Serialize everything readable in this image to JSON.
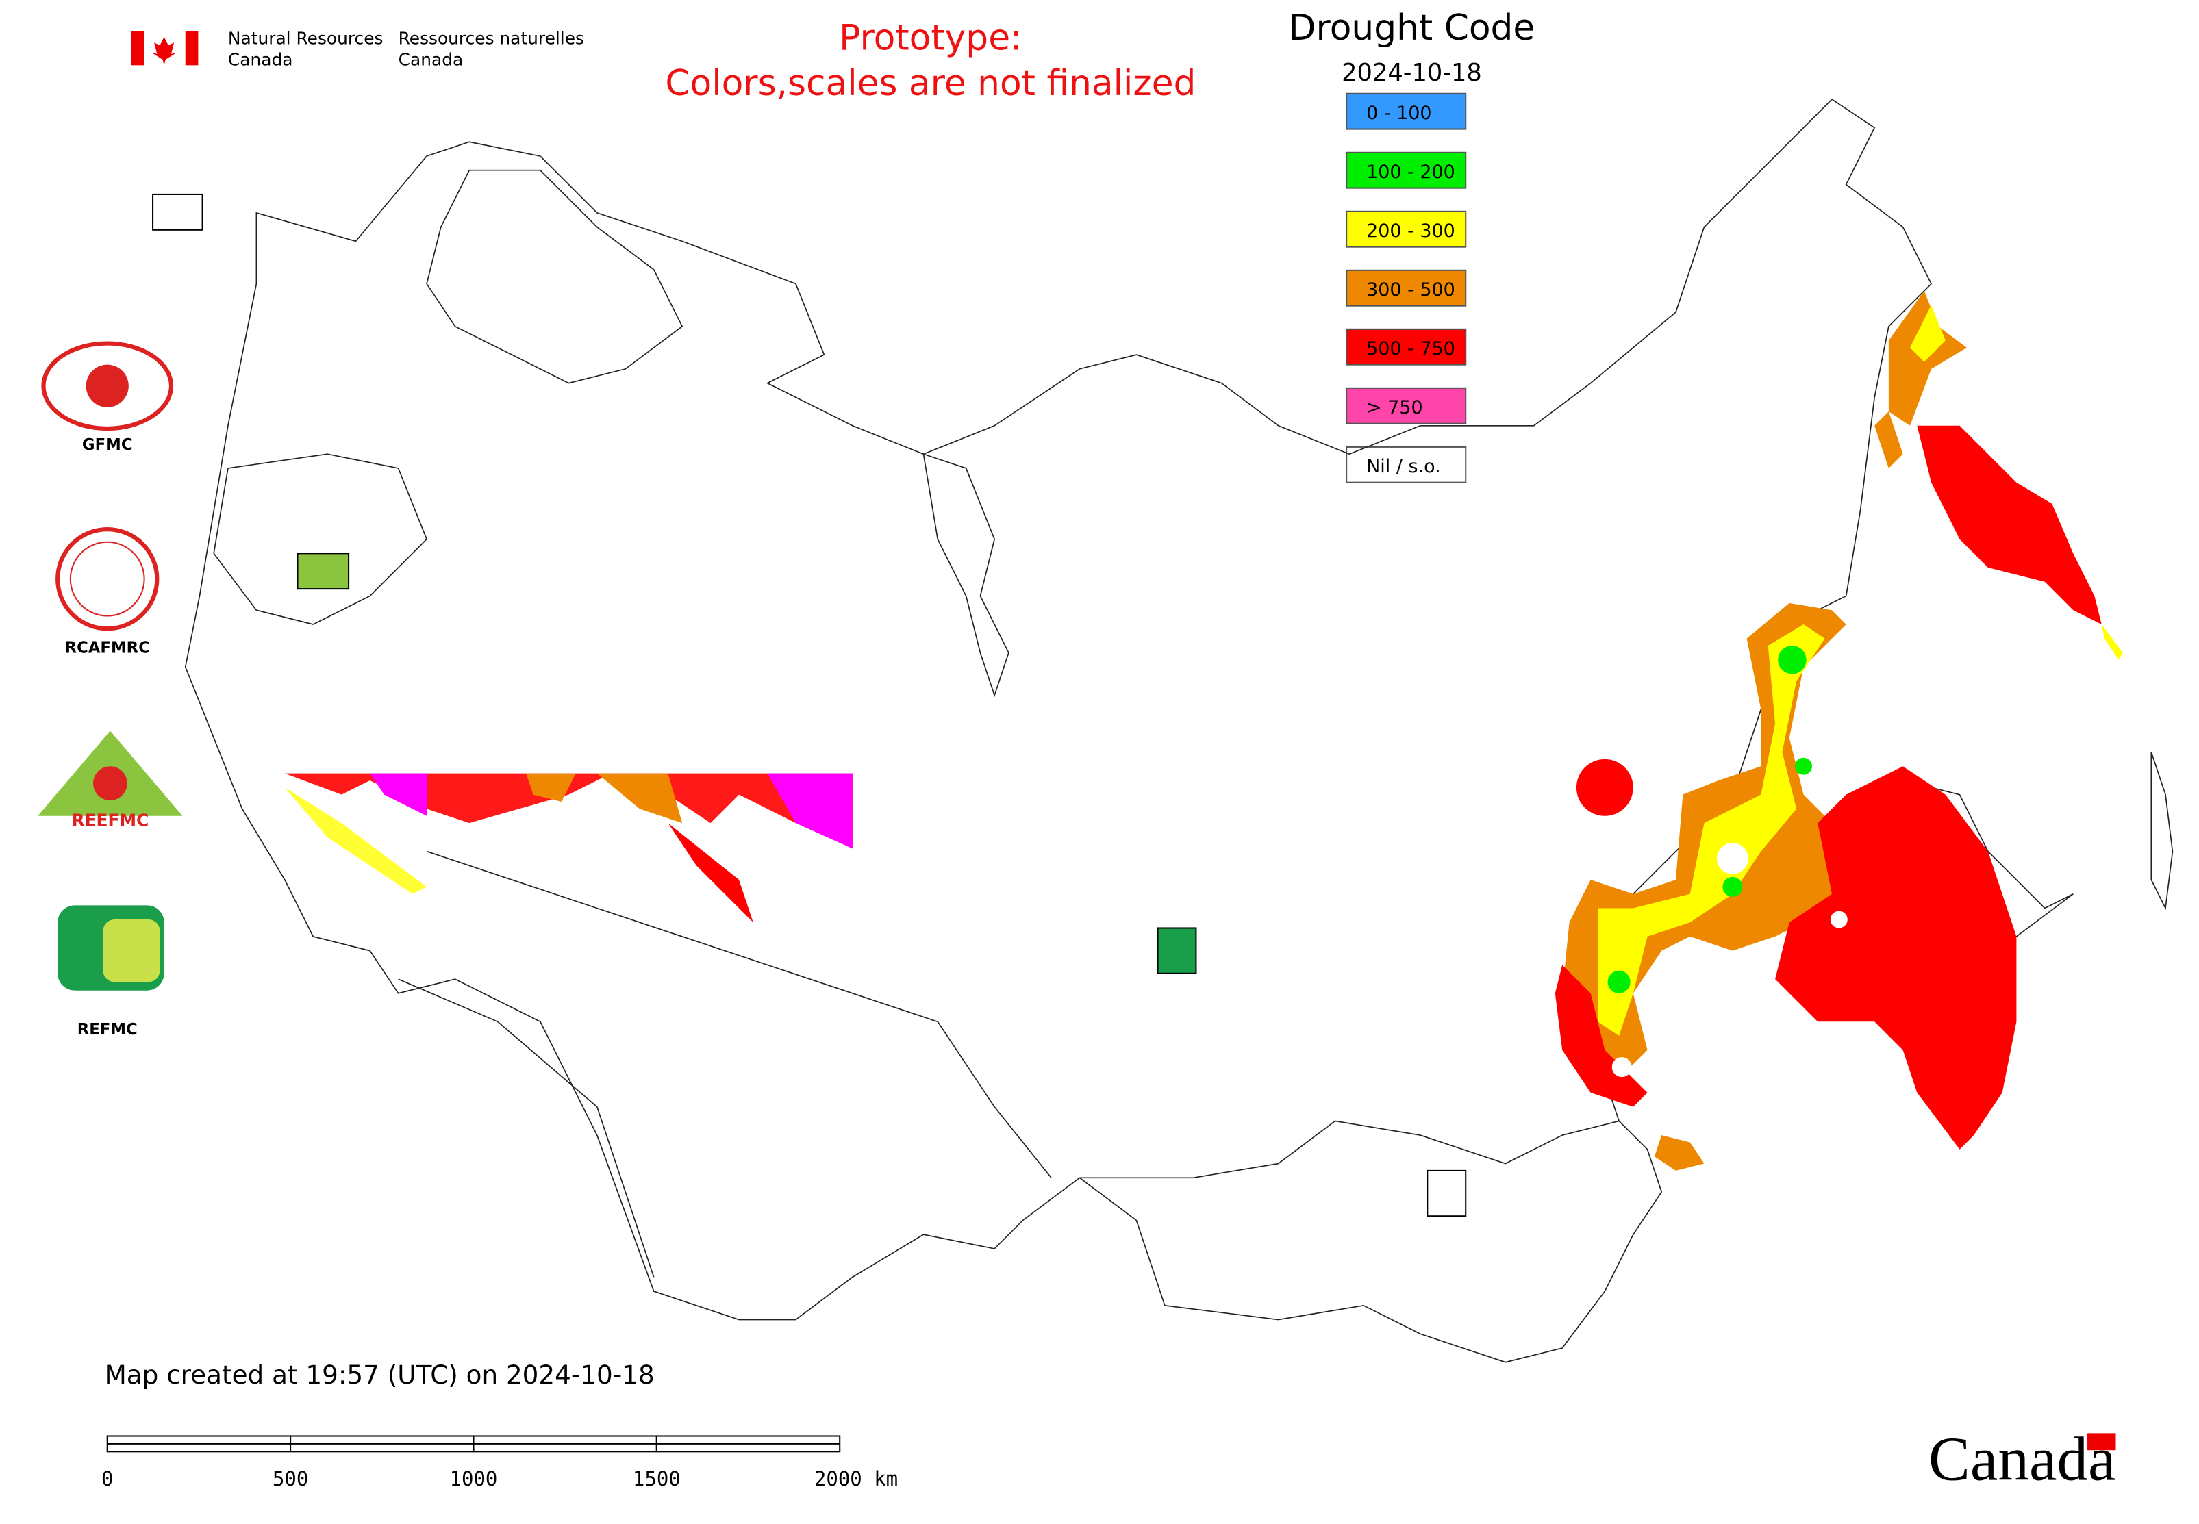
{
  "header": {
    "en": [
      "Natural Resources",
      "Canada"
    ],
    "fr": [
      "Ressources naturelles",
      "Canada"
    ]
  },
  "notice": [
    "Prototype:",
    "Colors,scales are not finalized"
  ],
  "legend": {
    "title": "Drought Code",
    "date": "2024-10-18",
    "items": [
      {
        "label": "0 - 100",
        "color": "#3399ff"
      },
      {
        "label": "100 - 200",
        "color": "#00ee00"
      },
      {
        "label": "200 - 300",
        "color": "#ffff00"
      },
      {
        "label": "300 - 500",
        "color": "#ee8800"
      },
      {
        "label": "500 - 750",
        "color": "#ff0000"
      },
      {
        "label": "> 750",
        "color": "#ff44aa"
      },
      {
        "label": "Nil / s.o.",
        "color": "#ffffff"
      }
    ]
  },
  "logos": [
    "GFMC",
    "RCAFMRC",
    "REEFMC",
    "REFMC"
  ],
  "footer": {
    "created": "Map created at 19:57 (UTC) on 2024-10-18",
    "scale_labels": [
      "0",
      "500",
      "1000",
      "1500",
      "2000 km"
    ],
    "wordmark": "Canada"
  }
}
